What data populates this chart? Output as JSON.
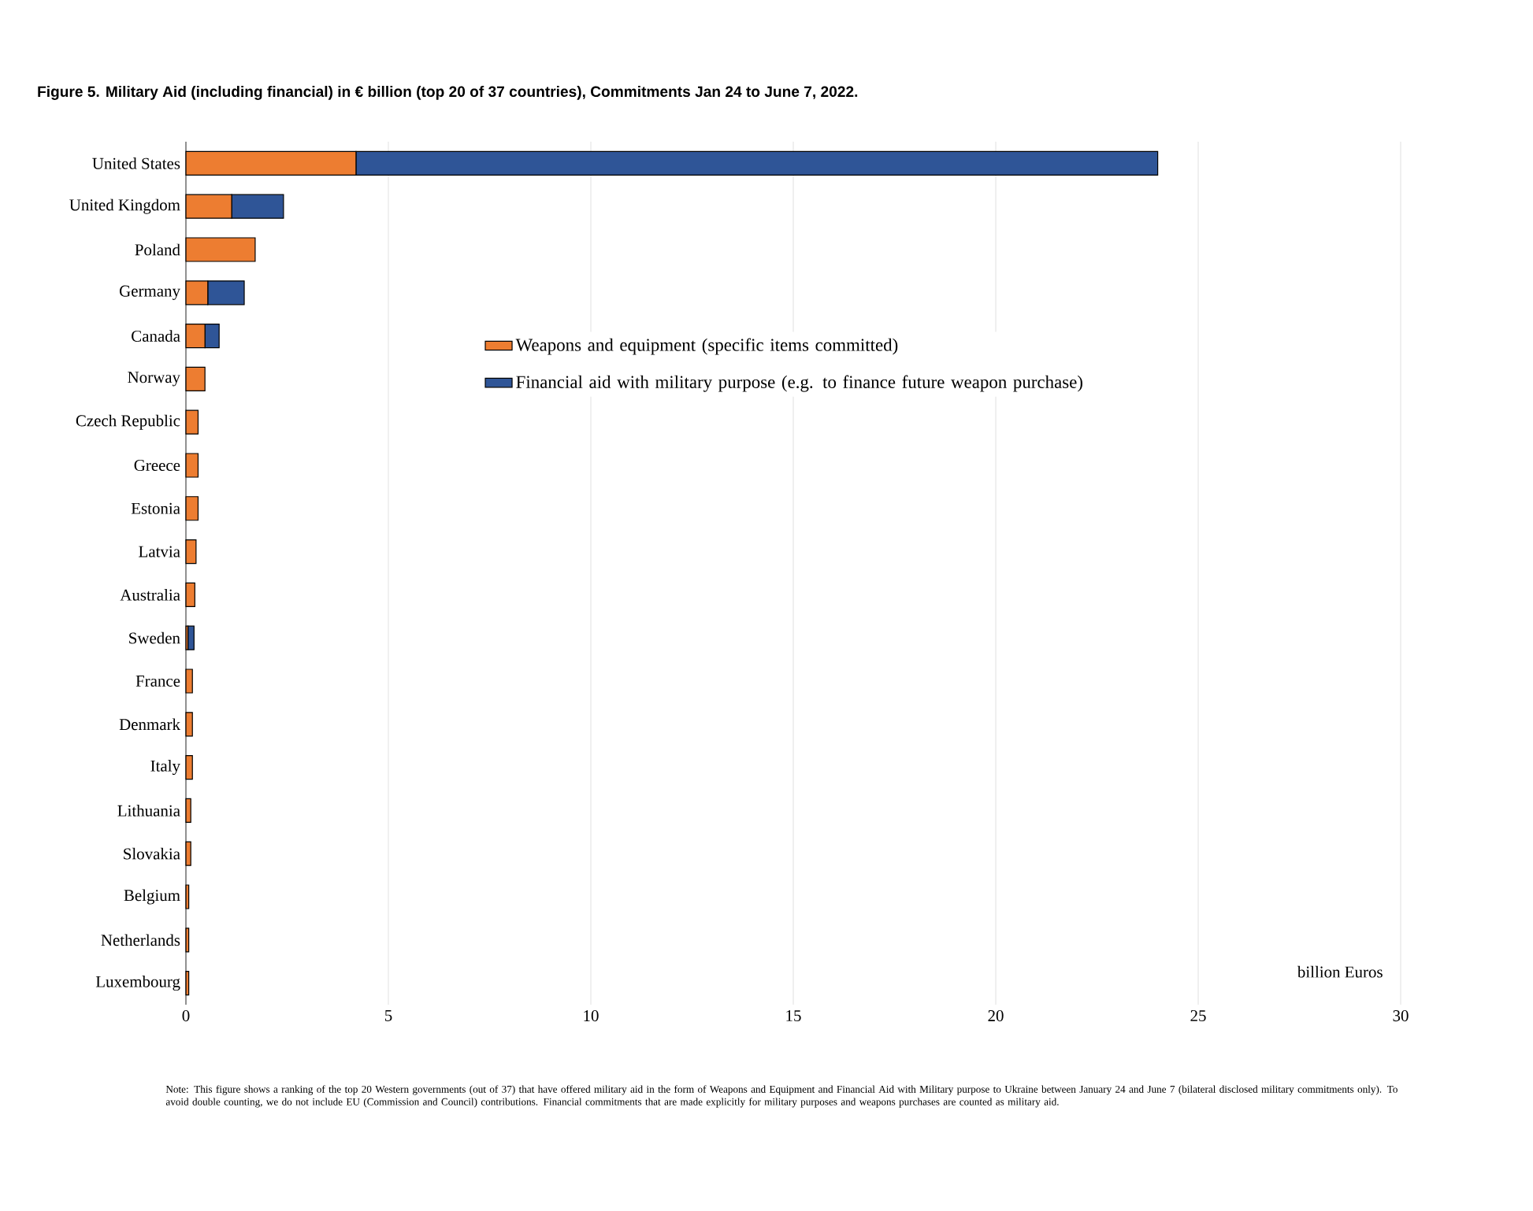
{
  "chart_data": {
    "type": "bar",
    "orientation": "horizontal",
    "stacked": true,
    "title": "Figure 5. Military Aid (including financial) in € billion (top 20 of 37 countries), Commitments Jan 24 to June 7, 2022.",
    "xlabel": "billion Euros",
    "categories": [
      "United States",
      "United Kingdom",
      "Poland",
      "Germany",
      "Canada",
      "Norway",
      "Czech Republic",
      "Greece",
      "Estonia",
      "Latvia",
      "Australia",
      "Sweden",
      "France",
      "Denmark",
      "Italy",
      "Lithuania",
      "Slovakia",
      "Belgium",
      "Netherlands",
      "Luxembourg"
    ],
    "series": [
      {
        "name": "Weapons and equipment (specific items committed)",
        "color": "#ed7d31",
        "values": [
          4.2,
          1.13,
          1.71,
          0.54,
          0.47,
          0.47,
          0.3,
          0.3,
          0.3,
          0.25,
          0.22,
          0.05,
          0.16,
          0.16,
          0.16,
          0.12,
          0.12,
          0.07,
          0.07,
          0.07
        ]
      },
      {
        "name": "Financial aid with military purpose (e.g. to finance future weapon purchase)",
        "color": "#2f5597",
        "values": [
          19.8,
          1.28,
          0,
          0.9,
          0.35,
          0,
          0,
          0,
          0,
          0,
          0,
          0.15,
          0,
          0,
          0,
          0,
          0,
          0,
          0,
          0
        ]
      }
    ],
    "xlim": [
      0,
      30
    ],
    "xticks": [
      0,
      5,
      10,
      15,
      20,
      25,
      30
    ],
    "grid": "x",
    "legend": "top",
    "annotations": [
      "Note: This figure shows a ranking of the top 20 Western governments (out of 37) that have offered military aid in the form of Weapons and Equipment and Financial Aid with Military purpose to Ukraine between January 24 and June 7 (bilateral disclosed military commitments only). To avoid double counting, we do not include EU (Commission and Council) contributions. Financial commitments that are made explicitly for military purposes and weapons purchases are counted as military aid."
    ]
  }
}
